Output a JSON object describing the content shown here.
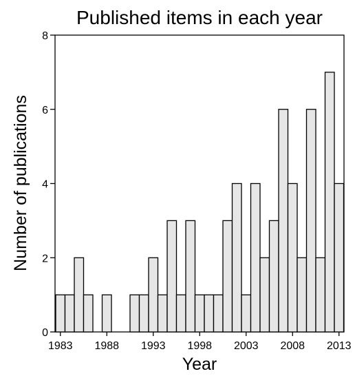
{
  "chart_data": {
    "type": "bar",
    "title": "Published items in each year",
    "xlabel": "Year",
    "ylabel": "Number of publications",
    "categories": [
      1983,
      1984,
      1985,
      1986,
      1987,
      1988,
      1989,
      1990,
      1991,
      1992,
      1993,
      1994,
      1995,
      1996,
      1997,
      1998,
      1999,
      2000,
      2001,
      2002,
      2003,
      2004,
      2005,
      2006,
      2007,
      2008,
      2009,
      2010,
      2011,
      2012,
      2013
    ],
    "values": [
      1,
      1,
      2,
      1,
      0,
      1,
      0,
      0,
      1,
      1,
      2,
      1,
      3,
      1,
      3,
      1,
      1,
      1,
      3,
      4,
      1,
      4,
      2,
      3,
      6,
      4,
      2,
      6,
      2,
      7,
      4
    ],
    "x_ticks": [
      "1983",
      "1988",
      "1993",
      "1998",
      "2003",
      "2008",
      "2013"
    ],
    "y_ticks": [
      "0",
      "2",
      "4",
      "6",
      "8"
    ],
    "ylim": [
      0,
      8
    ],
    "grid": false,
    "bar_color": "#e6e6e6",
    "edge_color": "#000000"
  }
}
